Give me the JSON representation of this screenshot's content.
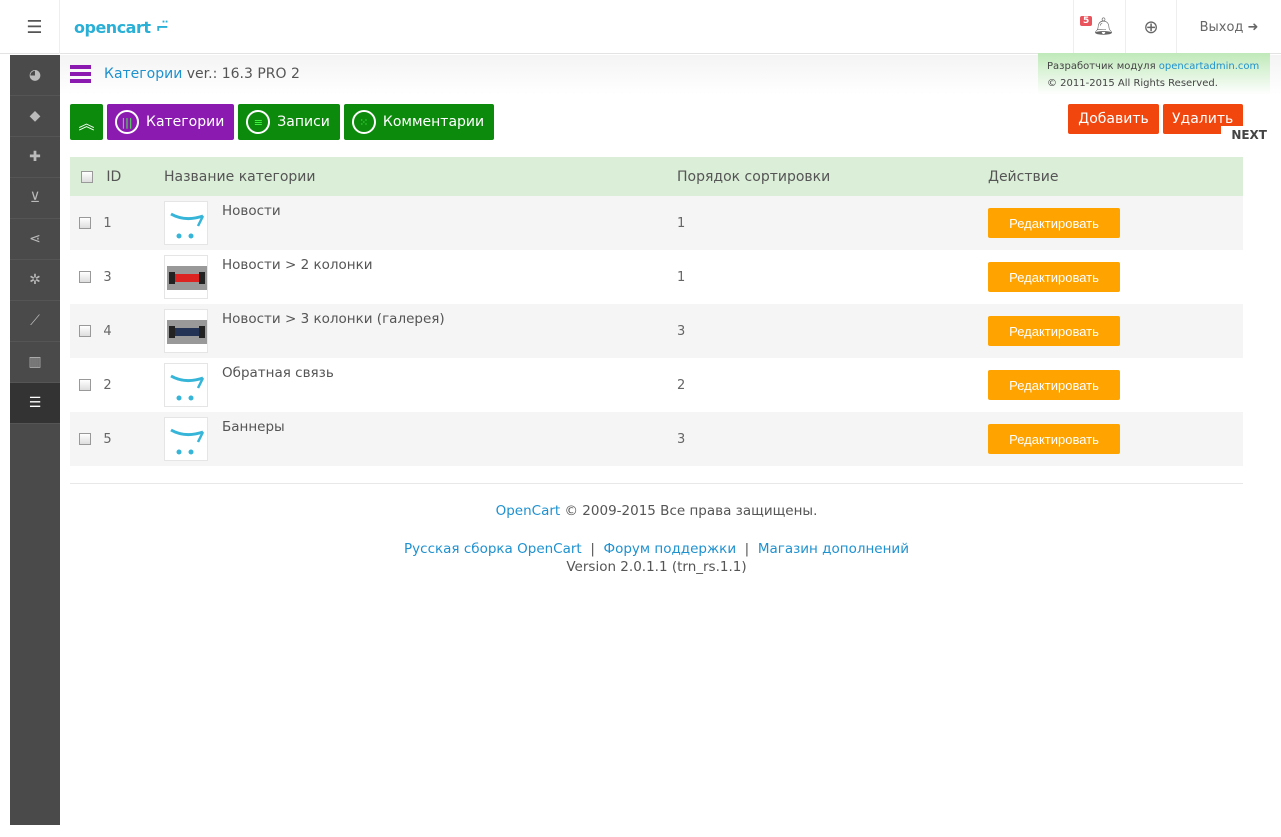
{
  "header": {
    "logo": "opencart",
    "notifications_count": "5",
    "logout_label": "Выход"
  },
  "sidebar": {
    "items": [
      {
        "icon": "dashboard-icon",
        "glyph": "◕"
      },
      {
        "icon": "tags-icon",
        "glyph": "◆"
      },
      {
        "icon": "puzzle-icon",
        "glyph": "✚"
      },
      {
        "icon": "cart-icon",
        "glyph": "⊻"
      },
      {
        "icon": "share-icon",
        "glyph": "⋖"
      },
      {
        "icon": "gear-icon",
        "glyph": "✲"
      },
      {
        "icon": "wrench-icon",
        "glyph": "⟋"
      },
      {
        "icon": "bar-chart-icon",
        "glyph": "▥"
      },
      {
        "icon": "list-icon",
        "glyph": "☰",
        "active": true
      }
    ]
  },
  "page": {
    "title_link": "Категории",
    "title_rest": " ver.: 16.3 PRO 2"
  },
  "developer": {
    "label": "Разработчик модуля ",
    "link": "opencartadmin.com",
    "copyright": "© 2011-2015 All Rights Reserved."
  },
  "tabs": [
    {
      "label": "Категории",
      "glyph": "|||"
    },
    {
      "label": "Записи",
      "glyph": "≡"
    },
    {
      "label": "Комментарии",
      "glyph": "⁙"
    }
  ],
  "actions": {
    "add": "Добавить",
    "delete": "Удалить",
    "next": "NEXT"
  },
  "table": {
    "headers": {
      "id": "ID",
      "name": "Название категории",
      "sort": "Порядок сортировки",
      "action": "Действие"
    },
    "rows": [
      {
        "id": "1",
        "name": "Новости",
        "sort": "1",
        "image": "opencart-logo",
        "edit": "Редактировать"
      },
      {
        "id": "3",
        "name": "Новости > 2 колонки",
        "sort": "1",
        "image": "red-race-car",
        "edit": "Редактировать"
      },
      {
        "id": "4",
        "name": "Новости > 3 колонки (галерея)",
        "sort": "3",
        "image": "blue-race-car",
        "edit": "Редактировать"
      },
      {
        "id": "2",
        "name": "Обратная связь",
        "sort": "2",
        "image": "opencart-logo",
        "edit": "Редактировать"
      },
      {
        "id": "5",
        "name": "Баннеры",
        "sort": "3",
        "image": "opencart-logo",
        "edit": "Редактировать"
      }
    ]
  },
  "footer": {
    "brand": "OpenCart",
    "copyright": " © 2009-2015 Все права защищены.",
    "links": [
      "Русская сборка OpenCart",
      "Форум поддержки",
      "Магазин дополнений"
    ],
    "version": "Version 2.0.1.1 (trn_rs.1.1)"
  },
  "colors": {
    "green": "#0b8a0b",
    "purple": "#8b1bb0",
    "red": "#f2460f",
    "orange": "#ffa300",
    "link": "#1e91cf"
  }
}
